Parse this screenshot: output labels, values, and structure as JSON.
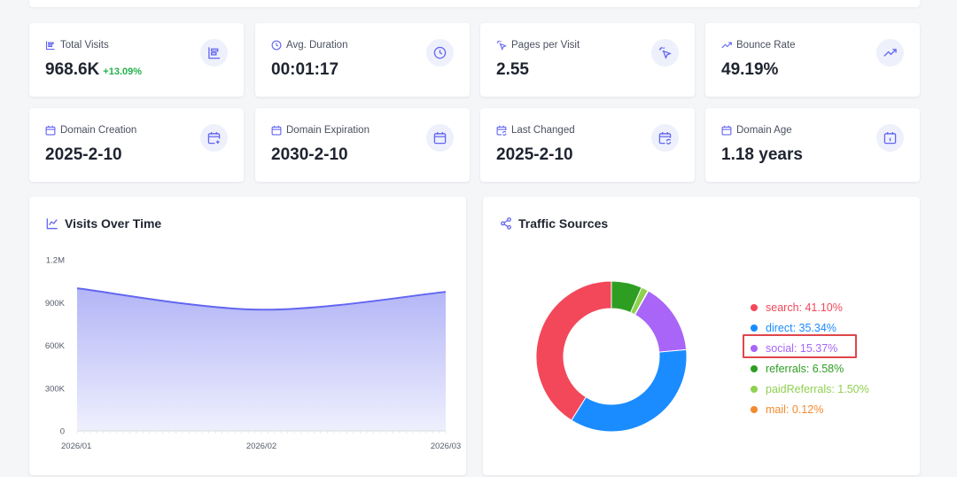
{
  "stats": [
    {
      "label": "Total Visits",
      "value": "968.6K",
      "delta": "+13.09%",
      "icon": "bar-chart-icon"
    },
    {
      "label": "Avg. Duration",
      "value": "00:01:17",
      "delta": "",
      "icon": "clock-icon"
    },
    {
      "label": "Pages per Visit",
      "value": "2.55",
      "delta": "",
      "icon": "pointer-click-icon"
    },
    {
      "label": "Bounce Rate",
      "value": "49.19%",
      "delta": "",
      "icon": "trending-up-icon"
    },
    {
      "label": "Domain Creation",
      "value": "2025-2-10",
      "delta": "",
      "icon": "calendar-plus-icon"
    },
    {
      "label": "Domain Expiration",
      "value": "2030-2-10",
      "delta": "",
      "icon": "calendar-icon"
    },
    {
      "label": "Last Changed",
      "value": "2025-2-10",
      "delta": "",
      "icon": "calendar-sync-icon"
    },
    {
      "label": "Domain Age",
      "value": "1.18 years",
      "delta": "",
      "icon": "calendar-range-icon"
    }
  ],
  "visits_panel": {
    "title": "Visits Over Time",
    "icon": "line-chart-icon"
  },
  "traffic_panel": {
    "title": "Traffic Sources",
    "icon": "share-icon",
    "highlighted_index": 2
  },
  "colors": {
    "accent": "#6366f1",
    "area_fill": "#a5a8f5",
    "search": "#f2485a",
    "direct": "#1a8cff",
    "social": "#a865f7",
    "referrals": "#2e9e22",
    "paidReferrals": "#8fd14f",
    "mail": "#f28a2e",
    "highlight": "#e0464a"
  },
  "chart_data": [
    {
      "type": "area",
      "x": [
        "2026/01",
        "2026/02",
        "2026/03"
      ],
      "series": [
        {
          "values": [
            1000000,
            850000,
            975000
          ]
        }
      ],
      "ylim": [
        0,
        1200000
      ],
      "yticks": [
        0,
        300000,
        600000,
        900000,
        1200000
      ],
      "ytick_labels": [
        "0",
        "300K",
        "600K",
        "900K",
        "1.2M"
      ],
      "xtick_labels": [
        "2026/01",
        "2026/02",
        "2026/03"
      ],
      "grid": false
    },
    {
      "type": "pie",
      "donut": true,
      "legend_placement": "right",
      "slices": [
        {
          "key": "search",
          "label": "search: 41.10%",
          "value": 41.1
        },
        {
          "key": "direct",
          "label": "direct: 35.34%",
          "value": 35.34
        },
        {
          "key": "social",
          "label": "social: 15.37%",
          "value": 15.37
        },
        {
          "key": "referrals",
          "label": "referrals: 6.58%",
          "value": 6.58
        },
        {
          "key": "paidReferrals",
          "label": "paidReferrals: 1.50%",
          "value": 1.5
        },
        {
          "key": "mail",
          "label": "mail: 0.12%",
          "value": 0.12
        }
      ]
    }
  ]
}
